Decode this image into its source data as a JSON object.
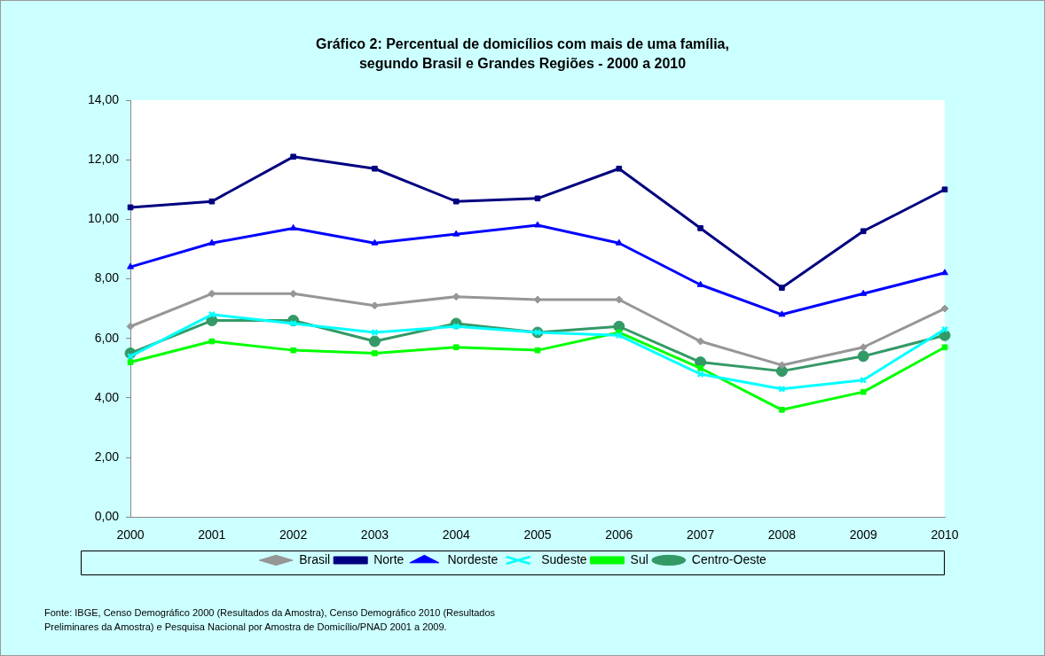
{
  "chart_data": {
    "type": "line",
    "title": "Gráfico 2: Percentual de domicílios com mais de uma família,\nsegundo Brasil e Grandes Regiões - 2000 a 2010",
    "categories": [
      "2000",
      "2001",
      "2002",
      "2003",
      "2004",
      "2005",
      "2006",
      "2007",
      "2008",
      "2009",
      "2010"
    ],
    "series": [
      {
        "name": "Brasil",
        "color": "#969696",
        "marker": "diamond",
        "values": [
          6.4,
          7.5,
          7.5,
          7.1,
          7.4,
          7.3,
          7.3,
          5.9,
          5.1,
          5.7,
          7.0
        ]
      },
      {
        "name": "Norte",
        "color": "#000080",
        "marker": "square",
        "values": [
          10.4,
          10.6,
          12.1,
          11.7,
          10.6,
          10.7,
          11.7,
          9.7,
          7.7,
          9.6,
          11.0
        ]
      },
      {
        "name": "Nordeste",
        "color": "#0000ff",
        "marker": "triangle",
        "values": [
          8.4,
          9.2,
          9.7,
          9.2,
          9.5,
          9.8,
          9.2,
          7.8,
          6.8,
          7.5,
          8.2
        ]
      },
      {
        "name": "Sudeste",
        "color": "#00ffff",
        "marker": "cross",
        "values": [
          5.4,
          6.8,
          6.5,
          6.2,
          6.4,
          6.2,
          6.1,
          4.8,
          4.3,
          4.6,
          6.3
        ]
      },
      {
        "name": "Sul",
        "color": "#00ff00",
        "marker": "square",
        "values": [
          5.2,
          5.9,
          5.6,
          5.5,
          5.7,
          5.6,
          6.2,
          5.0,
          3.6,
          4.2,
          5.7
        ]
      },
      {
        "name": "Centro-Oeste",
        "color": "#339966",
        "marker": "circle",
        "values": [
          5.5,
          6.6,
          6.6,
          5.9,
          6.5,
          6.2,
          6.4,
          5.2,
          4.9,
          5.4,
          6.1
        ]
      }
    ],
    "ylim": [
      0,
      14
    ],
    "yticks": [
      {
        "value": 0,
        "label": "0,00"
      },
      {
        "value": 2,
        "label": "2,00"
      },
      {
        "value": 4,
        "label": "4,00"
      },
      {
        "value": 6,
        "label": "6,00"
      },
      {
        "value": 8,
        "label": "8,00"
      },
      {
        "value": 10,
        "label": "10,00"
      },
      {
        "value": 12,
        "label": "12,00"
      },
      {
        "value": 14,
        "label": "14,00"
      }
    ],
    "grid": false,
    "legend": "bottom",
    "line_style": "solid",
    "annotations": [
      "Fonte: IBGE, Censo Demográfico 2000 (Resultados da Amostra), Censo Demográfico 2010 (Resultados\nPreliminares da Amostra) e Pesquisa Nacional por Amostra de Domicílio/PNAD 2001 a 2009."
    ]
  }
}
